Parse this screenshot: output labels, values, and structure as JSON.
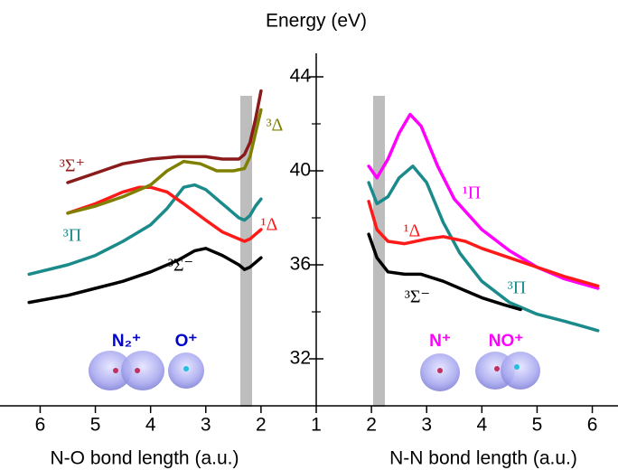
{
  "chart_data": {
    "type": "line",
    "ylabel": "Energy (eV)",
    "ylim": [
      30,
      45
    ],
    "yticks": [
      32,
      36,
      40,
      44
    ],
    "yminorticks": [
      34,
      38,
      42
    ],
    "panels": [
      {
        "xlabel": "N-O bond length (a.u.)",
        "xlim": [
          6.4,
          1
        ],
        "xticks": [
          6,
          5,
          4,
          3,
          2,
          1
        ],
        "series": [
          {
            "name": "³Σ⁻",
            "color": "#000000",
            "x": [
              6.2,
              5.5,
              5,
              4.5,
              4,
              3.5,
              3.2,
              3,
              2.7,
              2.4,
              2.3,
              2.2,
              2.1,
              2.0
            ],
            "values": [
              34.4,
              34.7,
              35.0,
              35.3,
              35.7,
              36.2,
              36.6,
              36.7,
              36.4,
              36.0,
              35.8,
              35.9,
              36.1,
              36.3
            ]
          },
          {
            "name": "³Π",
            "color": "#1b8a8a",
            "x": [
              6.2,
              5.5,
              5,
              4.5,
              4,
              3.7,
              3.4,
              3.2,
              3,
              2.7,
              2.4,
              2.3,
              2.2,
              2.1,
              2.0
            ],
            "values": [
              35.6,
              36.0,
              36.4,
              37.0,
              37.7,
              38.4,
              39.3,
              39.4,
              39.2,
              38.6,
              38.0,
              37.9,
              38.1,
              38.5,
              38.8
            ]
          },
          {
            "name": "¹Δ",
            "color": "#ff1a1a",
            "x": [
              5.5,
              5,
              4.5,
              4.2,
              4,
              3.7,
              3.4,
              3,
              2.7,
              2.4,
              2.3,
              2.2,
              2.1,
              2.0
            ],
            "values": [
              38.2,
              38.6,
              39.1,
              39.3,
              39.3,
              39.1,
              38.6,
              37.9,
              37.4,
              37.1,
              37.0,
              37.1,
              37.3,
              37.5
            ]
          },
          {
            "name": "³Δ",
            "color": "#808000",
            "x": [
              5.5,
              5,
              4.5,
              4,
              3.7,
              3.4,
              3.1,
              2.8,
              2.5,
              2.3,
              2.2,
              2.1,
              2.0
            ],
            "values": [
              38.2,
              38.5,
              38.9,
              39.4,
              40.0,
              40.4,
              40.3,
              40.0,
              40.0,
              40.1,
              40.6,
              41.6,
              42.6
            ]
          },
          {
            "name": "³Σ⁺",
            "color": "#8b1a1a",
            "x": [
              5.5,
              5,
              4.5,
              4,
              3.5,
              3,
              2.7,
              2.4,
              2.3,
              2.2,
              2.1,
              2.0
            ],
            "values": [
              39.5,
              39.9,
              40.3,
              40.5,
              40.6,
              40.6,
              40.5,
              40.5,
              40.7,
              41.2,
              42.2,
              43.4
            ]
          }
        ]
      },
      {
        "xlabel": "N-N bond length (a.u.)",
        "xlim": [
          1,
          6.4
        ],
        "xticks": [
          2,
          3,
          4,
          5,
          6
        ],
        "series": [
          {
            "name": "¹Π",
            "color": "#ff00ff",
            "x": [
              1.95,
              2.1,
              2.3,
              2.5,
              2.7,
              2.9,
              3.2,
              3.5,
              4,
              4.5,
              5,
              5.5,
              6.1
            ],
            "values": [
              40.2,
              39.7,
              40.5,
              41.6,
              42.4,
              41.9,
              40.2,
              38.8,
              37.5,
              36.6,
              35.9,
              35.4,
              35.0
            ]
          },
          {
            "name": "³Π",
            "color": "#1b8a8a",
            "x": [
              1.95,
              2.1,
              2.3,
              2.5,
              2.75,
              3,
              3.3,
              3.6,
              4,
              4.5,
              5,
              5.5,
              6.1
            ],
            "values": [
              39.5,
              38.6,
              38.9,
              39.7,
              40.2,
              39.5,
              37.8,
              36.5,
              35.3,
              34.4,
              33.9,
              33.6,
              33.2
            ]
          },
          {
            "name": "¹Δ",
            "color": "#ff1a1a",
            "x": [
              1.95,
              2.1,
              2.3,
              2.6,
              3,
              3.3,
              3.7,
              4,
              4.5,
              5,
              5.5,
              6.1
            ],
            "values": [
              38.7,
              37.5,
              37.0,
              36.9,
              37.1,
              37.2,
              37.0,
              36.7,
              36.3,
              35.9,
              35.5,
              35.1
            ]
          },
          {
            "name": "³Σ⁻",
            "color": "#000000",
            "x": [
              1.95,
              2.1,
              2.3,
              2.6,
              2.9,
              3.3,
              3.7,
              4,
              4.4,
              4.7
            ],
            "values": [
              37.3,
              36.3,
              35.7,
              35.6,
              35.6,
              35.3,
              34.9,
              34.6,
              34.3,
              34.1
            ]
          }
        ]
      }
    ],
    "annotations": [
      {
        "text": "N₂⁺",
        "color": "#0000cc"
      },
      {
        "text": "O⁺",
        "color": "#0000cc"
      },
      {
        "text": "N⁺",
        "color": "#ff00ff"
      },
      {
        "text": "NO⁺",
        "color": "#ff00ff"
      }
    ]
  }
}
